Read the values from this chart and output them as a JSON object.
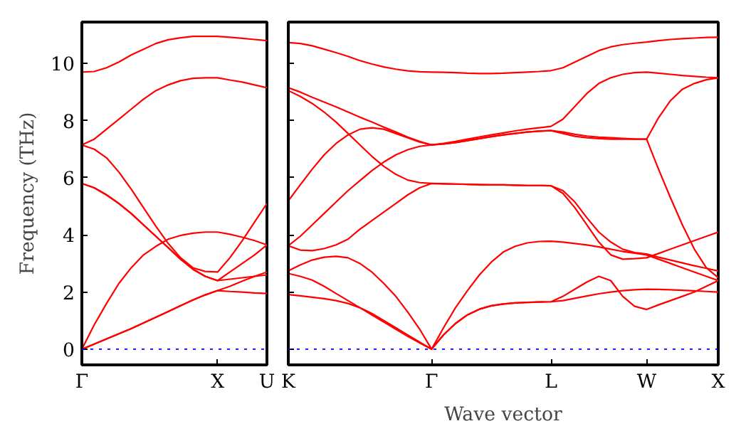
{
  "chart_data": [
    {
      "type": "line",
      "ylabel": "Frequency (THz)",
      "ylim": [
        -0.55,
        11.45
      ],
      "categories": [
        "Γ",
        null,
        null,
        null,
        null,
        null,
        null,
        null,
        null,
        null,
        null,
        "X",
        null,
        null,
        null,
        "U"
      ],
      "yticks": [
        0,
        2,
        4,
        6,
        8,
        10
      ],
      "grid": false,
      "line_style": "solid",
      "marker": "none",
      "ref_lines": [
        {
          "axis": "y",
          "value": 0,
          "label": null,
          "color": "#0000ff",
          "line_style": "dotted"
        }
      ],
      "series": [
        {
          "color": "#ff0000",
          "values": [
            0,
            0.18,
            0.36,
            0.54,
            0.72,
            0.92,
            1.12,
            1.32,
            1.52,
            1.72,
            1.9,
            2.05,
            2.02,
            2.0,
            1.97,
            1.95
          ]
        },
        {
          "color": "#ff0000",
          "values": [
            0,
            0.18,
            0.36,
            0.54,
            0.72,
            0.92,
            1.12,
            1.32,
            1.52,
            1.72,
            1.9,
            2.05,
            2.2,
            2.38,
            2.55,
            2.7
          ]
        },
        {
          "color": "#ff0000",
          "values": [
            0,
            0.85,
            1.6,
            2.3,
            2.85,
            3.3,
            3.6,
            3.85,
            3.98,
            4.06,
            4.1,
            4.1,
            4.02,
            3.92,
            3.8,
            3.65
          ]
        },
        {
          "color": "#ff0000",
          "values": [
            5.8,
            5.65,
            5.4,
            5.1,
            4.75,
            4.35,
            3.95,
            3.55,
            3.15,
            2.8,
            2.55,
            2.4,
            2.45,
            2.5,
            2.55,
            2.6
          ]
        },
        {
          "color": "#ff0000",
          "values": [
            5.8,
            5.65,
            5.4,
            5.1,
            4.75,
            4.35,
            3.95,
            3.55,
            3.15,
            2.8,
            2.55,
            2.4,
            2.7,
            3.0,
            3.3,
            3.65
          ]
        },
        {
          "color": "#ff0000",
          "values": [
            7.15,
            7.0,
            6.7,
            6.2,
            5.6,
            4.95,
            4.3,
            3.7,
            3.2,
            2.85,
            2.72,
            2.7,
            3.2,
            3.8,
            4.45,
            5.1
          ]
        },
        {
          "color": "#ff0000",
          "values": [
            7.15,
            7.35,
            7.7,
            8.05,
            8.4,
            8.75,
            9.05,
            9.25,
            9.4,
            9.48,
            9.5,
            9.5,
            9.42,
            9.35,
            9.25,
            9.15
          ]
        },
        {
          "color": "#ff0000",
          "values": [
            9.7,
            9.72,
            9.85,
            10.05,
            10.3,
            10.5,
            10.7,
            10.83,
            10.9,
            10.95,
            10.95,
            10.95,
            10.92,
            10.88,
            10.84,
            10.8
          ]
        }
      ]
    },
    {
      "type": "line",
      "xlabel": "Wave vector",
      "ylim": [
        -0.55,
        11.45
      ],
      "categories": [
        "K",
        null,
        null,
        null,
        null,
        null,
        null,
        null,
        null,
        null,
        null,
        null,
        "Γ",
        null,
        null,
        null,
        null,
        null,
        null,
        null,
        null,
        null,
        "L",
        null,
        null,
        null,
        null,
        null,
        null,
        null,
        "W",
        null,
        null,
        null,
        null,
        null,
        "X"
      ],
      "yticks": [
        {
          "value": 0,
          "label": null
        },
        {
          "value": 2,
          "label": null
        },
        {
          "value": 4,
          "label": null
        },
        {
          "value": 6,
          "label": null
        },
        {
          "value": 8,
          "label": null
        },
        {
          "value": 10,
          "label": null
        }
      ],
      "tick_labels": "x",
      "grid": false,
      "line_style": "solid",
      "marker": "none",
      "ref_lines": [
        {
          "axis": "y",
          "value": 0,
          "label": null,
          "color": "#0000ff",
          "line_style": "dotted"
        }
      ],
      "series": [
        {
          "color": "#ff0000",
          "values": [
            10.73,
            10.7,
            10.62,
            10.5,
            10.38,
            10.25,
            10.1,
            9.98,
            9.88,
            9.8,
            9.74,
            9.71,
            9.7,
            9.69,
            9.68,
            9.66,
            9.65,
            9.65,
            9.66,
            9.68,
            9.7,
            9.72,
            9.75,
            9.85,
            10.05,
            10.25,
            10.45,
            10.58,
            10.66,
            10.71,
            10.75,
            10.8,
            10.84,
            10.87,
            10.89,
            10.91,
            10.92
          ]
        },
        {
          "color": "#ff0000",
          "values": [
            9.15,
            9.0,
            8.82,
            8.65,
            8.48,
            8.3,
            8.12,
            7.95,
            7.77,
            7.6,
            7.42,
            7.27,
            7.15,
            7.2,
            7.27,
            7.35,
            7.43,
            7.5,
            7.57,
            7.64,
            7.7,
            7.75,
            7.8,
            8.05,
            8.5,
            8.95,
            9.3,
            9.5,
            9.62,
            9.68,
            9.7,
            9.66,
            9.62,
            9.58,
            9.55,
            9.52,
            9.5
          ]
        },
        {
          "color": "#ff0000",
          "values": [
            9.05,
            8.85,
            8.6,
            8.3,
            7.95,
            7.55,
            7.15,
            6.75,
            6.4,
            6.12,
            5.92,
            5.83,
            5.8,
            5.79,
            5.78,
            5.77,
            5.76,
            5.75,
            5.75,
            5.74,
            5.73,
            5.73,
            5.72,
            5.45,
            4.95,
            4.35,
            3.75,
            3.3,
            3.15,
            3.17,
            3.2,
            3.35,
            3.5,
            3.65,
            3.8,
            3.95,
            4.1
          ]
        },
        {
          "color": "#ff0000",
          "values": [
            3.62,
            3.47,
            3.45,
            3.52,
            3.65,
            3.85,
            4.2,
            4.5,
            4.8,
            5.1,
            5.4,
            5.65,
            5.8,
            5.79,
            5.78,
            5.77,
            5.76,
            5.75,
            5.75,
            5.74,
            5.73,
            5.73,
            5.72,
            5.55,
            5.15,
            4.6,
            4.1,
            3.75,
            3.5,
            3.38,
            3.33,
            3.22,
            3.12,
            3.02,
            2.92,
            2.83,
            2.74
          ]
        },
        {
          "color": "#ff0000",
          "values": [
            5.19,
            5.75,
            6.3,
            6.8,
            7.2,
            7.5,
            7.7,
            7.75,
            7.7,
            7.55,
            7.4,
            7.25,
            7.15,
            7.18,
            7.23,
            7.3,
            7.37,
            7.44,
            7.5,
            7.55,
            7.6,
            7.63,
            7.65,
            7.55,
            7.45,
            7.4,
            7.37,
            7.35,
            7.35,
            7.35,
            7.35,
            8.1,
            8.7,
            9.1,
            9.3,
            9.43,
            9.5
          ]
        },
        {
          "color": "#ff0000",
          "values": [
            3.62,
            3.95,
            4.35,
            4.75,
            5.15,
            5.55,
            5.9,
            6.25,
            6.55,
            6.8,
            6.98,
            7.1,
            7.15,
            7.18,
            7.23,
            7.3,
            7.37,
            7.44,
            7.5,
            7.55,
            7.6,
            7.63,
            7.65,
            7.6,
            7.52,
            7.46,
            7.42,
            7.4,
            7.38,
            7.36,
            7.35,
            6.3,
            5.3,
            4.35,
            3.5,
            2.85,
            2.5
          ]
        },
        {
          "color": "#ff0000",
          "values": [
            2.74,
            2.95,
            3.12,
            3.22,
            3.25,
            3.2,
            3.0,
            2.7,
            2.3,
            1.85,
            1.3,
            0.7,
            0,
            0.75,
            1.45,
            2.05,
            2.6,
            3.05,
            3.4,
            3.6,
            3.72,
            3.77,
            3.78,
            3.75,
            3.7,
            3.65,
            3.58,
            3.5,
            3.42,
            3.36,
            3.3,
            3.15,
            3.0,
            2.85,
            2.7,
            2.55,
            2.4
          ]
        },
        {
          "color": "#ff0000",
          "values": [
            2.65,
            2.55,
            2.42,
            2.2,
            1.95,
            1.7,
            1.45,
            1.2,
            0.95,
            0.7,
            0.45,
            0.22,
            0,
            0.5,
            0.9,
            1.2,
            1.4,
            1.52,
            1.58,
            1.62,
            1.64,
            1.65,
            1.66,
            1.85,
            2.1,
            2.35,
            2.55,
            2.4,
            1.85,
            1.5,
            1.39,
            1.55,
            1.7,
            1.85,
            2.0,
            2.2,
            2.4
          ]
        },
        {
          "color": "#ff0000",
          "values": [
            1.91,
            1.87,
            1.82,
            1.77,
            1.7,
            1.6,
            1.45,
            1.25,
            1.0,
            0.75,
            0.5,
            0.25,
            0,
            0.5,
            0.9,
            1.2,
            1.4,
            1.52,
            1.58,
            1.62,
            1.64,
            1.65,
            1.66,
            1.7,
            1.78,
            1.86,
            1.94,
            2.0,
            2.05,
            2.08,
            2.1,
            2.09,
            2.08,
            2.06,
            2.04,
            2.02,
            2.0
          ]
        }
      ]
    }
  ]
}
